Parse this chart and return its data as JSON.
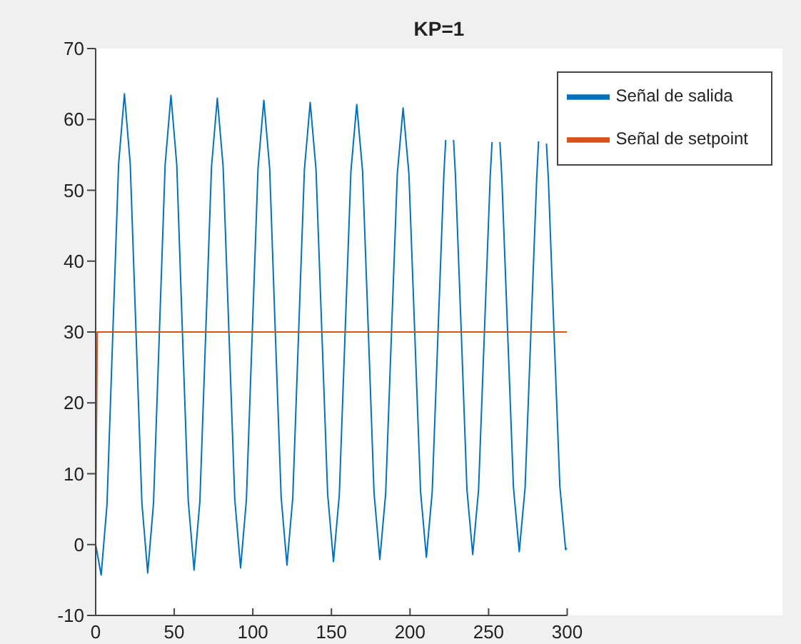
{
  "chart_data": {
    "type": "line",
    "title": "KP=1",
    "xlim": [
      0,
      300
    ],
    "xticks": [
      0,
      50,
      100,
      150,
      200,
      250,
      300
    ],
    "ylim": [
      -10,
      70
    ],
    "yticks": [
      -10,
      0,
      10,
      20,
      30,
      40,
      50,
      60,
      70
    ],
    "grid": false,
    "legend": "top right",
    "line_style": "solid",
    "marker": "none",
    "series": [
      {
        "name": "Señal de salida",
        "color": "#0072bd",
        "x": [
          0,
          3.5,
          7.2,
          10.9,
          14.6,
          18.3,
          22.0,
          25.7,
          29.4,
          33.1,
          36.8,
          40.5,
          44.2,
          47.9,
          51.6,
          55.2,
          58.9,
          62.6,
          66.3,
          70.0,
          73.7,
          77.4,
          81.1,
          84.8,
          88.5,
          92.2,
          95.9,
          99.6,
          103.3,
          107.0,
          110.7,
          114.3,
          118.0,
          121.7,
          125.4,
          129.1,
          132.8,
          136.5,
          140.2,
          143.9,
          147.6,
          151.3,
          155.0,
          158.7,
          162.4,
          166.1,
          169.8,
          173.5,
          177.1,
          180.8,
          184.5,
          188.2,
          191.9,
          195.6,
          199.3,
          203.0,
          206.7,
          210.4,
          214.1,
          217.8,
          221.5,
          222.7,
          225.2,
          227.7,
          228.9,
          232.6,
          236.2,
          239.9,
          243.6,
          247.3,
          251.0,
          252.2,
          254.7,
          257.2,
          258.4,
          262.1,
          265.8,
          269.5,
          273.2,
          276.9,
          280.6,
          281.8,
          284.3,
          286.8,
          288.0,
          291.6,
          295.3,
          299.0,
          300
        ],
        "values": [
          0,
          -4.3,
          5.6,
          29.7,
          53.7,
          63.6,
          53.7,
          29.8,
          5.9,
          -4.0,
          5.8,
          29.7,
          53.6,
          63.4,
          53.6,
          29.9,
          6.2,
          -3.6,
          6.1,
          29.7,
          53.3,
          63.0,
          53.3,
          29.9,
          6.4,
          -3.3,
          6.3,
          29.7,
          53.1,
          62.7,
          53.1,
          29.9,
          6.7,
          -2.9,
          6.6,
          29.8,
          52.9,
          62.4,
          52.9,
          30.0,
          7.1,
          -2.4,
          7.0,
          29.9,
          52.7,
          62.1,
          52.7,
          30.0,
          7.3,
          -2.1,
          7.2,
          29.8,
          52.3,
          61.6,
          52.3,
          29.9,
          7.5,
          -1.8,
          7.4,
          29.8,
          52.1,
          57.1,
          null,
          57.1,
          52.1,
          30.0,
          7.8,
          -1.4,
          7.7,
          29.8,
          51.9,
          56.8,
          null,
          56.8,
          51.9,
          30.0,
          8.1,
          -1.0,
          8.0,
          29.9,
          51.7,
          56.9,
          null,
          56.6,
          51.7,
          30.0,
          8.3,
          -0.7,
          -0.5
        ]
      },
      {
        "name": "Señal de setpoint",
        "color": "#d95319",
        "x": [
          0,
          1,
          300
        ],
        "values": [
          0,
          30,
          30
        ]
      }
    ]
  }
}
